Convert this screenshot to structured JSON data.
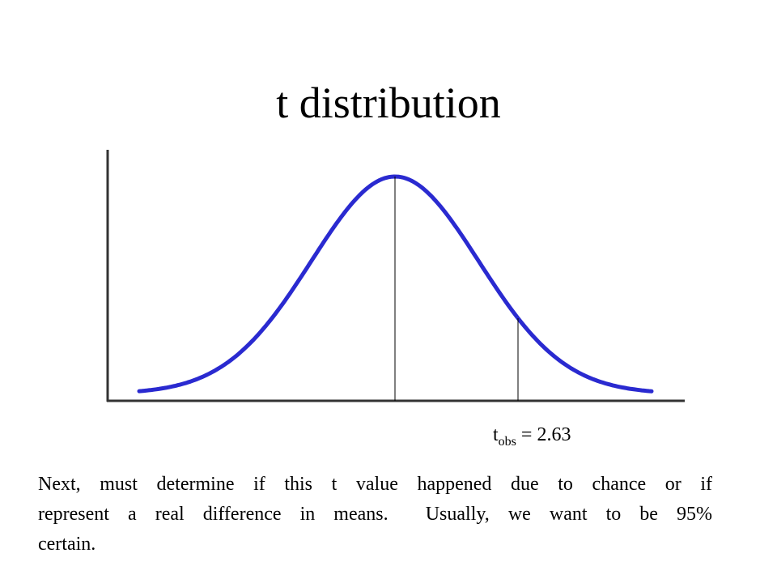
{
  "slide": {
    "title": "t distribution",
    "label": {
      "main": "t",
      "sub": "obs",
      "rest": "= 2.63"
    },
    "body": {
      "lines": [
        "Next, must determine if this t value happened due to chance or if",
        "represent a real difference in means.  Usually, we want to be 95%",
        "certain."
      ]
    }
  }
}
